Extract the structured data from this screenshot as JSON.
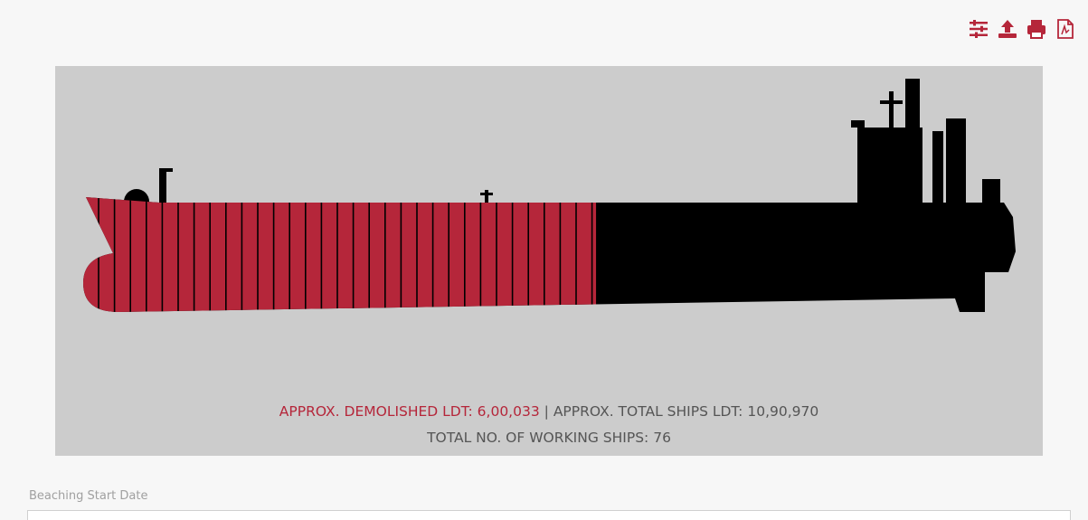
{
  "summary": {
    "demolished_label": "APPROX. DEMOLISHED LDT:",
    "demolished_ldt": {
      "value": 600033,
      "label": "6,00,033"
    },
    "separator": "|",
    "total_label": "APPROX. TOTAL SHIPS LDT:",
    "total_ldt": {
      "value": 1090970,
      "label": "10,90,970"
    },
    "working_label": "TOTAL NO. OF WORKING SHIPS:",
    "working_ships": 76
  },
  "form": {
    "field_label": "Beaching Start Date"
  }
}
